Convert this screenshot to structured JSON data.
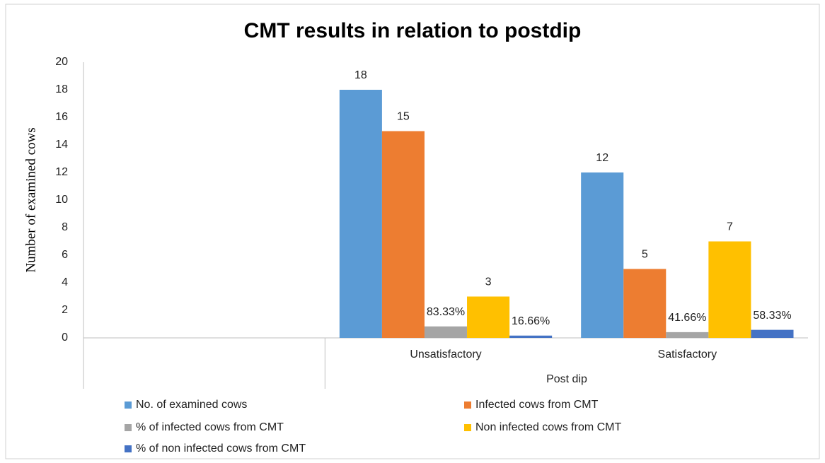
{
  "chart_data": {
    "type": "bar",
    "title": "CMT results in relation to postdip",
    "ylabel": "Number of examined cows",
    "xlabel": "Post dip",
    "categories": [
      null,
      "Unsatisfactory",
      "Satisfactory"
    ],
    "series": [
      {
        "name": "No. of examined cows",
        "color": "#5b9bd5",
        "values": [
          null,
          18,
          12
        ]
      },
      {
        "name": "Infected cows from CMT",
        "color": "#ed7d31",
        "values": [
          null,
          15,
          5
        ]
      },
      {
        "name": "% of infected cows  from CMT",
        "color": "#a5a5a5",
        "values": [
          null,
          0.8333,
          0.4166
        ],
        "value_labels": [
          null,
          "83.33%",
          "41.66%"
        ]
      },
      {
        "name": "Non infected cows from CMT",
        "color": "#ffc000",
        "values": [
          null,
          3,
          7
        ]
      },
      {
        "name": "% of non infected cows from CMT",
        "color": "#4472c4",
        "values": [
          null,
          0.1666,
          0.5833
        ],
        "value_labels": [
          null,
          "16.66%",
          "58.33%"
        ]
      }
    ],
    "ylim": [
      0,
      20
    ],
    "yticks": [
      0,
      2,
      4,
      6,
      8,
      10,
      12,
      14,
      16,
      18,
      20
    ],
    "grid": false
  }
}
